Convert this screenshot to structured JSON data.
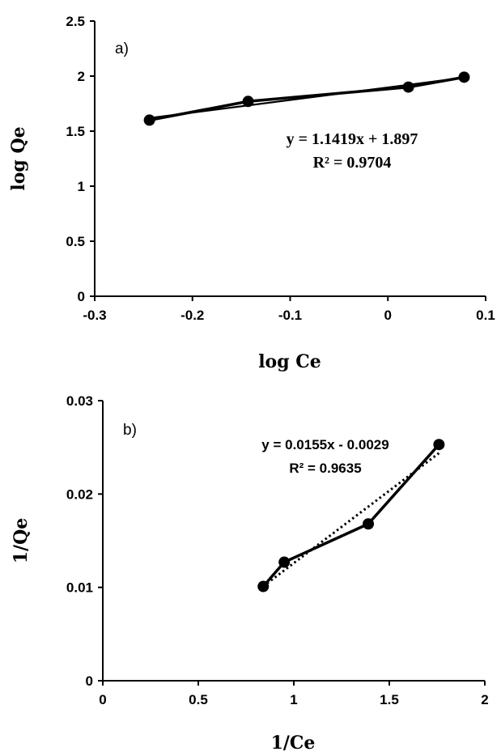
{
  "chart_data": [
    {
      "type": "scatter",
      "panel_label": "a)",
      "xlabel": "log Ce",
      "ylabel": "log Qe",
      "xlim": [
        -0.3,
        0.1
      ],
      "ylim": [
        0,
        2.5
      ],
      "xticks": [
        "-0.3",
        "-0.2",
        "-0.1",
        "0",
        "0.1"
      ],
      "yticks": [
        "0",
        "0.5",
        "1",
        "1.5",
        "2",
        "2.5"
      ],
      "x": [
        -0.244,
        -0.143,
        0.021,
        0.078
      ],
      "y": [
        1.6,
        1.77,
        1.9,
        1.99
      ],
      "trendline": {
        "style": "solid",
        "slope": 1.1419,
        "intercept": 1.897,
        "x_range": [
          -0.244,
          0.078
        ]
      },
      "equation": "y = 1.1419x + 1.897",
      "r2": "R² = 0.9704",
      "grid": false
    },
    {
      "type": "scatter",
      "panel_label": "b)",
      "xlabel": "1/Ce",
      "ylabel": "1/Qe",
      "xlim": [
        0,
        2
      ],
      "ylim": [
        0,
        0.03
      ],
      "xticks": [
        "0",
        "0.5",
        "1",
        "1.5",
        "2"
      ],
      "yticks": [
        "0",
        "0.01",
        "0.02",
        "0.03"
      ],
      "x": [
        0.84,
        0.95,
        1.39,
        1.76
      ],
      "y": [
        0.0101,
        0.0127,
        0.0168,
        0.0253
      ],
      "trendline": {
        "style": "dotted",
        "slope": 0.0155,
        "intercept": -0.0029,
        "x_range": [
          0.84,
          1.76
        ]
      },
      "equation": "y = 0.0155x - 0.0029",
      "r2": "R² = 0.9635",
      "grid": false
    }
  ]
}
